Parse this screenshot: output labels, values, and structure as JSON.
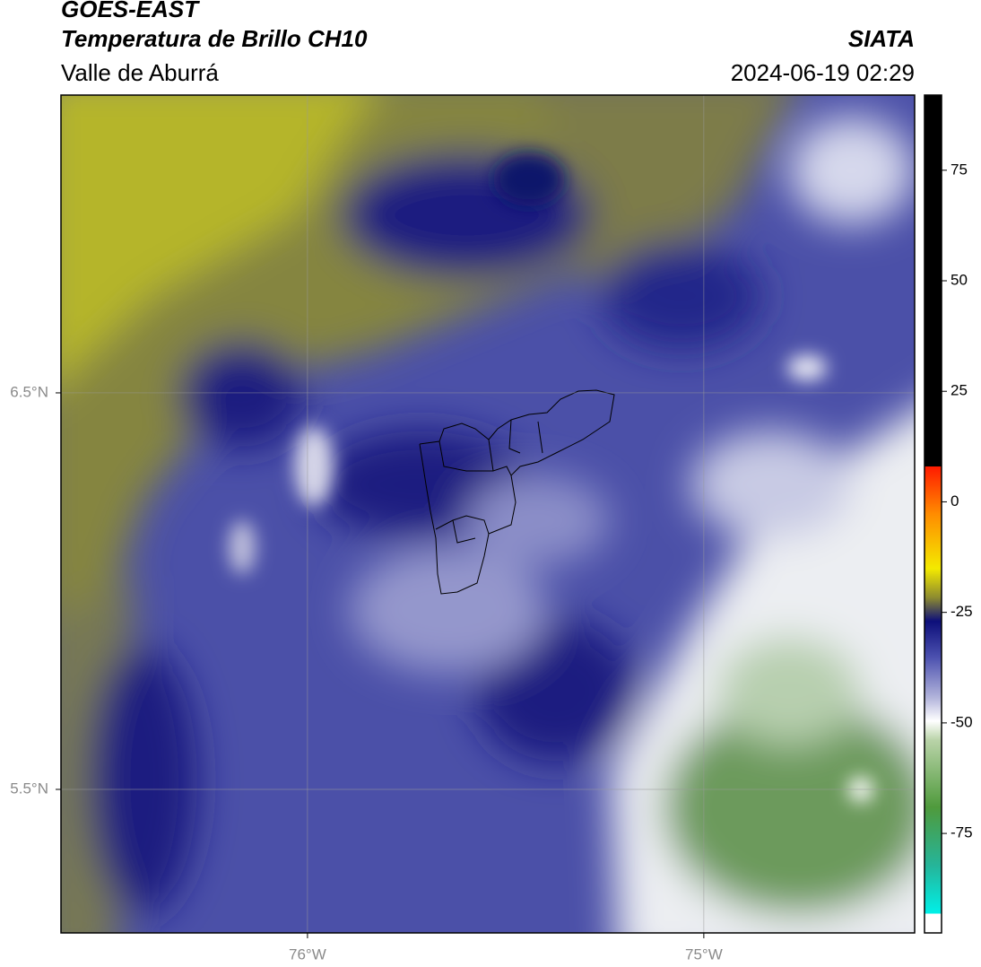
{
  "header": {
    "title": "GOES-EAST",
    "subtitle": "Temperatura de Brillo CH10",
    "region": "Valle de Aburrá",
    "source": "SIATA",
    "timestamp": "2024-06-19 02:29"
  },
  "map": {
    "xlim": [
      -76.622,
      -74.468
    ],
    "ylim": [
      5.138,
      7.251
    ],
    "xticks": [
      {
        "value": -76,
        "label": "76°W"
      },
      {
        "value": -75,
        "label": "75°W"
      }
    ],
    "yticks": [
      {
        "value": 5.5,
        "label": "5.5°N"
      },
      {
        "value": 6.5,
        "label": "6.5°N"
      }
    ],
    "grid": true
  },
  "colorbar": {
    "lim": [
      -97.5,
      92
    ],
    "ticks": [
      -75,
      -50,
      -25,
      0,
      25,
      50,
      75
    ]
  }
}
